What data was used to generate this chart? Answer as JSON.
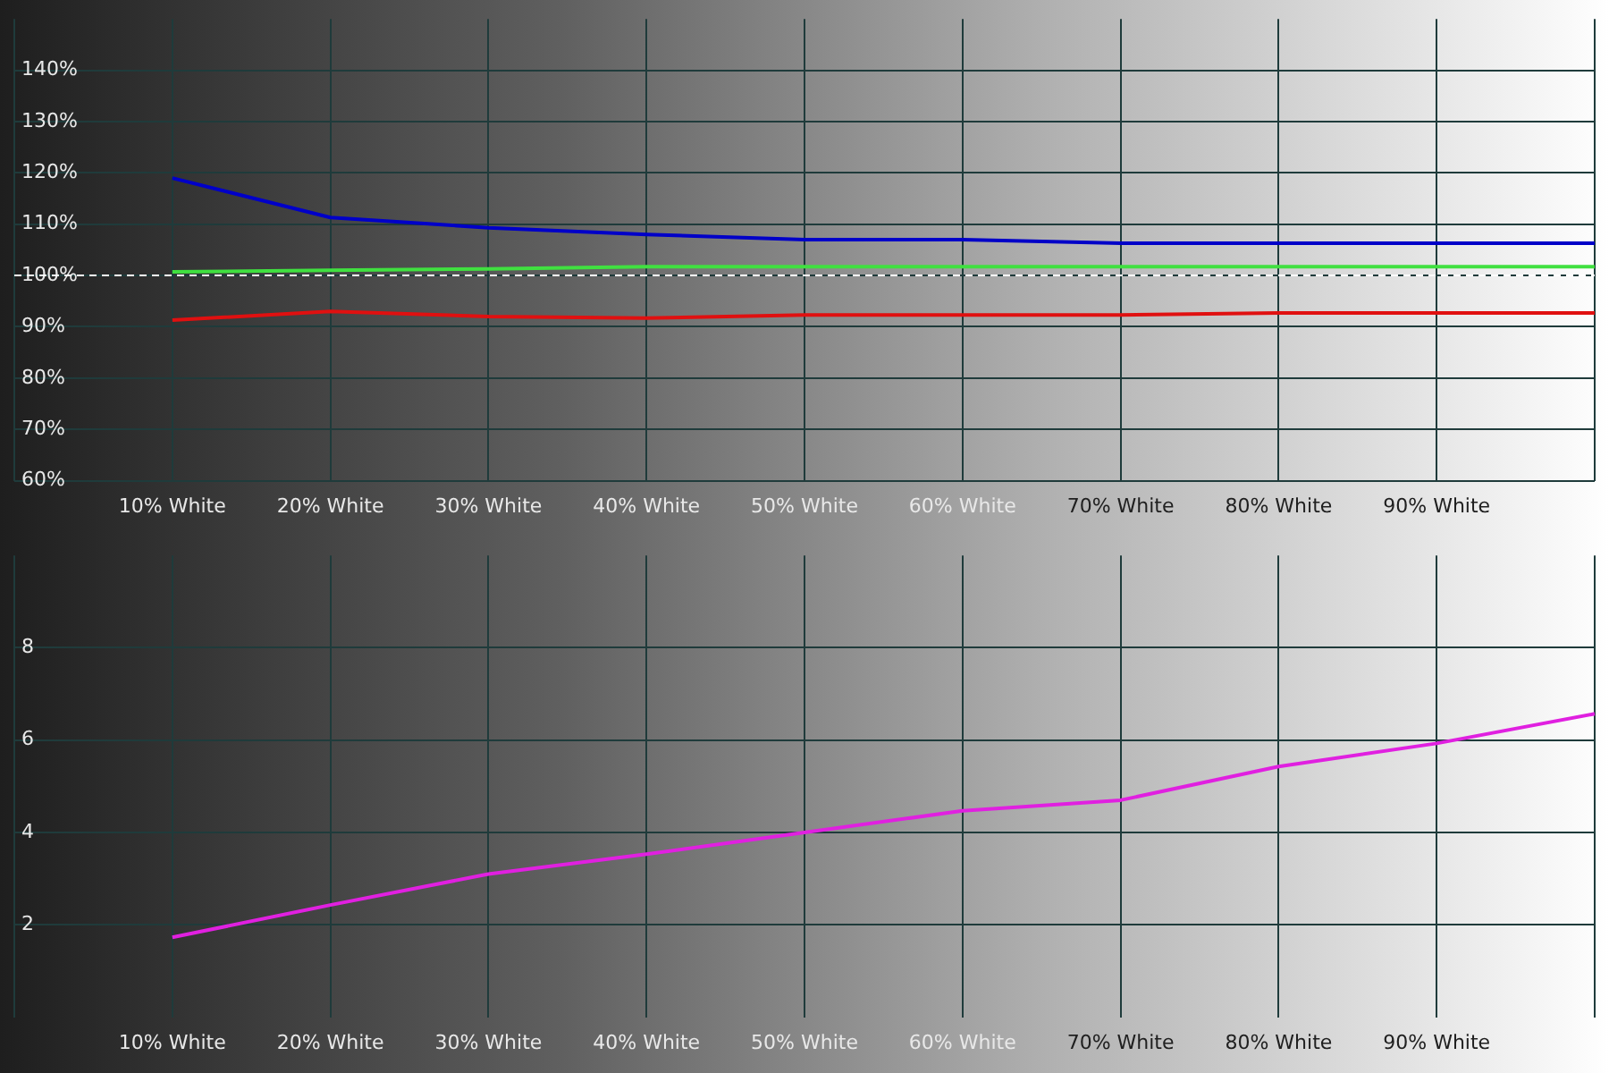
{
  "chart_data": [
    {
      "type": "line",
      "categories": [
        null,
        "10% White",
        "20% White",
        "30% White",
        "40% White",
        "50% White",
        "60% White",
        "70% White",
        "80% White",
        "90% White",
        null
      ],
      "series": [
        {
          "color": "#0000c8",
          "values": [
            null,
            119,
            111.3,
            109.3,
            108,
            107,
            107,
            106.3,
            106.3,
            106.3,
            106.3
          ]
        },
        {
          "color": "#40e040",
          "values": [
            null,
            100.7,
            101,
            101.3,
            101.7,
            101.7,
            101.7,
            101.7,
            101.7,
            101.7,
            101.7
          ]
        },
        {
          "color": "#e01010",
          "values": [
            null,
            91.3,
            93,
            92,
            91.7,
            92.3,
            92.3,
            92.3,
            92.7,
            92.7,
            92.7
          ]
        }
      ],
      "ylim": [
        60,
        150
      ],
      "yticks": [
        {
          "value": 60,
          "label": "60%"
        },
        {
          "value": 70,
          "label": "70%"
        },
        {
          "value": 80,
          "label": "80%"
        },
        {
          "value": 90,
          "label": "90%"
        },
        {
          "value": 100,
          "label": "100%"
        },
        {
          "value": 110,
          "label": "110%"
        },
        {
          "value": 120,
          "label": "120%"
        },
        {
          "value": 130,
          "label": "130%"
        },
        {
          "value": 140,
          "label": "140%"
        }
      ],
      "ref_lines": [
        {
          "axis": "y",
          "value": 100,
          "color": "#ffffff",
          "line_style": "dashed"
        }
      ],
      "grid": true,
      "legend": false,
      "marker": "none",
      "line_style": "solid"
    },
    {
      "type": "line",
      "categories": [
        null,
        "10% White",
        "20% White",
        "30% White",
        "40% White",
        "50% White",
        "60% White",
        "70% White",
        "80% White",
        "90% White",
        null
      ],
      "series": [
        {
          "color": "#e020e0",
          "values": [
            null,
            1.73,
            2.43,
            3.1,
            3.53,
            4.0,
            4.47,
            4.7,
            5.43,
            5.93,
            6.57
          ]
        }
      ],
      "ylim": [
        0,
        10
      ],
      "yticks": [
        2,
        4,
        6,
        8
      ],
      "grid": true,
      "legend": false,
      "marker": "none",
      "line_style": "solid"
    }
  ]
}
